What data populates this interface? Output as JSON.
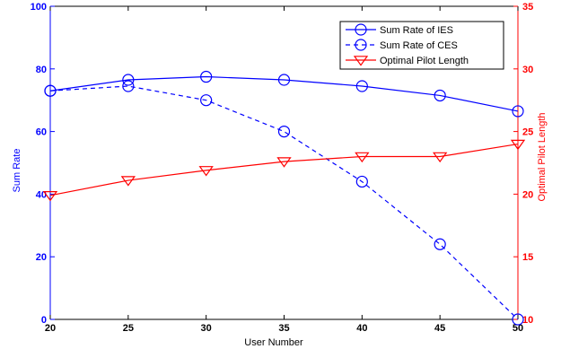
{
  "chart_data": {
    "type": "line",
    "x": [
      20,
      25,
      30,
      35,
      40,
      45,
      50
    ],
    "xlabel": "User Number",
    "xlim": [
      20,
      50
    ],
    "xticks": [
      "20",
      "25",
      "30",
      "35",
      "40",
      "45",
      "50"
    ],
    "ylabel_left": "Sum Rate",
    "ylim_left": [
      0,
      100
    ],
    "yticks_left": [
      "0",
      "20",
      "40",
      "60",
      "80",
      "100"
    ],
    "ylabel_right": "Optimal Pilot Length",
    "ylim_right": [
      10,
      35
    ],
    "yticks_right": [
      "10",
      "15",
      "20",
      "25",
      "30",
      "35"
    ],
    "grid": false,
    "legend_position": "top-right",
    "series": [
      {
        "name": "Sum Rate of IES",
        "axis": "left",
        "color": "#0000ff",
        "linestyle": "solid",
        "marker": "circle",
        "values": [
          73,
          76.5,
          77.5,
          76.5,
          74.5,
          71.5,
          66.5
        ]
      },
      {
        "name": "Sum Rate of CES",
        "axis": "left",
        "color": "#0000ff",
        "linestyle": "dashed",
        "marker": "circle",
        "values": [
          73,
          74.5,
          70,
          60,
          44,
          24,
          0
        ]
      },
      {
        "name": "Optimal Pilot Length",
        "axis": "right",
        "color": "#ff0000",
        "linestyle": "solid",
        "marker": "triangle-down",
        "values": [
          19.9,
          21.1,
          21.9,
          22.6,
          23,
          23,
          24
        ]
      }
    ],
    "colors": {
      "left_axis": "#0000ff",
      "right_axis": "#ff0000",
      "frame": "#000000"
    }
  }
}
